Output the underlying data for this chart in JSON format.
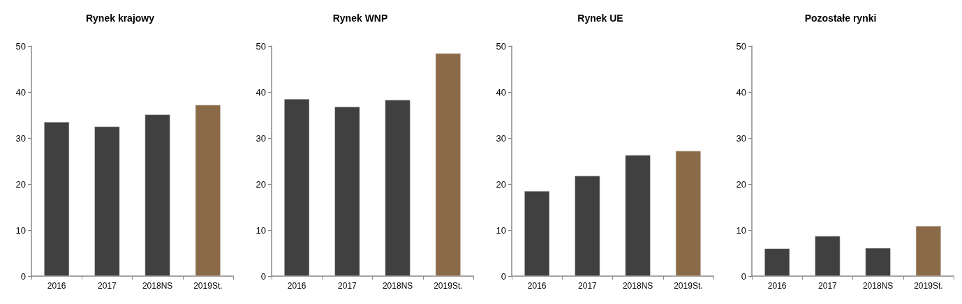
{
  "chart_data": [
    {
      "type": "bar",
      "title": "Rynek krajowy",
      "categories": [
        "2016",
        "2017",
        "2018NS",
        "2019St."
      ],
      "values": [
        33.5,
        32.5,
        35.1,
        37.2
      ],
      "colors": [
        "#404040",
        "#404040",
        "#404040",
        "#8b6a47"
      ],
      "ylim": [
        0,
        50
      ],
      "yticks": [
        0,
        10,
        20,
        30,
        40,
        50
      ],
      "grid": false
    },
    {
      "type": "bar",
      "title": "Rynek WNP",
      "categories": [
        "2016",
        "2017",
        "2018NS",
        "2019St."
      ],
      "values": [
        38.5,
        36.8,
        38.3,
        48.4
      ],
      "colors": [
        "#404040",
        "#404040",
        "#404040",
        "#8b6a47"
      ],
      "ylim": [
        0,
        50
      ],
      "yticks": [
        0,
        10,
        20,
        30,
        40,
        50
      ],
      "grid": false
    },
    {
      "type": "bar",
      "title": "Rynek UE",
      "categories": [
        "2016",
        "2017",
        "2018NS",
        "2019St."
      ],
      "values": [
        18.5,
        21.8,
        26.3,
        27.2
      ],
      "colors": [
        "#404040",
        "#404040",
        "#404040",
        "#8b6a47"
      ],
      "ylim": [
        0,
        50
      ],
      "yticks": [
        0,
        10,
        20,
        30,
        40,
        50
      ],
      "grid": false
    },
    {
      "type": "bar",
      "title": "Pozostałe rynki",
      "categories": [
        "2016",
        "2017",
        "2018NS",
        "2019St."
      ],
      "values": [
        6.0,
        8.7,
        6.1,
        10.9
      ],
      "colors": [
        "#404040",
        "#404040",
        "#404040",
        "#8b6a47"
      ],
      "ylim": [
        0,
        50
      ],
      "yticks": [
        0,
        10,
        20,
        30,
        40,
        50
      ],
      "grid": false
    }
  ]
}
